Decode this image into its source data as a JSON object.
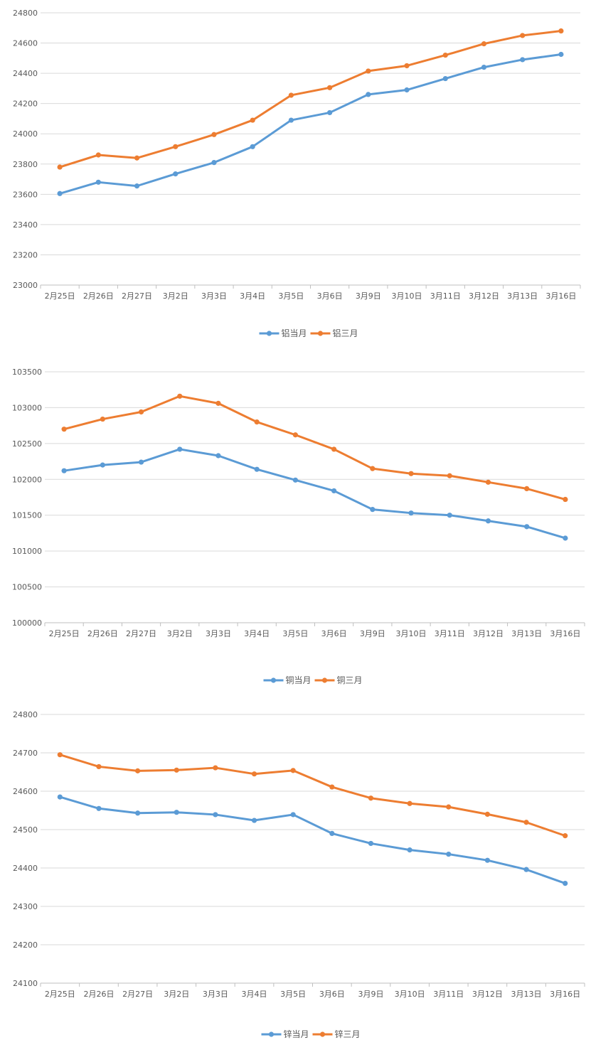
{
  "colors": {
    "blue": "#5b9bd5",
    "orange": "#ed7d31",
    "grid": "#d9d9d9",
    "axis": "#bfbfbf",
    "text": "#595959"
  },
  "chart_data": [
    {
      "type": "line",
      "title": "",
      "xlabel": "",
      "ylabel": "",
      "ylim": [
        23000,
        24800
      ],
      "yticks": [
        "23000",
        "23200",
        "23400",
        "23600",
        "23800",
        "24000",
        "24200",
        "24400",
        "24600",
        "24800"
      ],
      "categories": [
        "2月25日",
        "2月26日",
        "2月27日",
        "3月2日",
        "3月3日",
        "3月4日",
        "3月5日",
        "3月6日",
        "3月9日",
        "3月10日",
        "3月11日",
        "3月12日",
        "3月13日",
        "3月16日"
      ],
      "legend_position": "bottom",
      "series": [
        {
          "name": "铝当月",
          "color": "#5b9bd5",
          "values": [
            23605,
            23680,
            23655,
            23735,
            23810,
            23915,
            24090,
            24140,
            24260,
            24290,
            24365,
            24440,
            24490,
            24525
          ]
        },
        {
          "name": "铝三月",
          "color": "#ed7d31",
          "values": [
            23780,
            23860,
            23840,
            23915,
            23995,
            24090,
            24255,
            24305,
            24415,
            24450,
            24520,
            24595,
            24650,
            24680
          ]
        }
      ]
    },
    {
      "type": "line",
      "title": "",
      "xlabel": "",
      "ylabel": "",
      "ylim": [
        100000,
        103500
      ],
      "yticks": [
        "100000",
        "100500",
        "101000",
        "101500",
        "102000",
        "102500",
        "103000",
        "103500"
      ],
      "categories": [
        "2月25日",
        "2月26日",
        "2月27日",
        "3月2日",
        "3月3日",
        "3月4日",
        "3月5日",
        "3月6日",
        "3月9日",
        "3月10日",
        "3月11日",
        "3月12日",
        "3月13日",
        "3月16日"
      ],
      "legend_position": "bottom",
      "series": [
        {
          "name": "铜当月",
          "color": "#5b9bd5",
          "values": [
            102120,
            102200,
            102240,
            102420,
            102330,
            102140,
            101990,
            101840,
            101580,
            101530,
            101500,
            101420,
            101340,
            101180
          ]
        },
        {
          "name": "铜三月",
          "color": "#ed7d31",
          "values": [
            102700,
            102840,
            102940,
            103160,
            103060,
            102800,
            102620,
            102420,
            102150,
            102080,
            102050,
            101960,
            101870,
            101720
          ]
        }
      ]
    },
    {
      "type": "line",
      "title": "",
      "xlabel": "",
      "ylabel": "",
      "ylim": [
        24100,
        24800
      ],
      "yticks": [
        "24100",
        "24200",
        "24300",
        "24400",
        "24500",
        "24600",
        "24700",
        "24800"
      ],
      "categories": [
        "2月25日",
        "2月26日",
        "2月27日",
        "3月2日",
        "3月3日",
        "3月4日",
        "3月5日",
        "3月6日",
        "3月9日",
        "3月10日",
        "3月11日",
        "3月12日",
        "3月13日",
        "3月16日"
      ],
      "legend_position": "bottom",
      "series": [
        {
          "name": "锌当月",
          "color": "#5b9bd5",
          "values": [
            24585,
            24555,
            24543,
            24545,
            24539,
            24524,
            24539,
            24490,
            24464,
            24447,
            24436,
            24420,
            24396,
            24360
          ]
        },
        {
          "name": "锌三月",
          "color": "#ed7d31",
          "values": [
            24695,
            24664,
            24653,
            24655,
            24661,
            24645,
            24654,
            24611,
            24582,
            24568,
            24559,
            24540,
            24519,
            24484
          ]
        }
      ]
    }
  ]
}
